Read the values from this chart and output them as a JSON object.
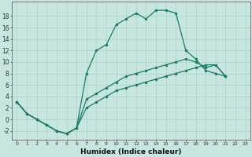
{
  "xlabel": "Humidex (Indice chaleur)",
  "bg_color": "#c8e6e0",
  "grid_color": "#b0d4cc",
  "line_color": "#1a7a6a",
  "xlim": [
    -0.5,
    23.5
  ],
  "ylim": [
    -3.5,
    20.5
  ],
  "yticks": [
    -2,
    0,
    2,
    4,
    6,
    8,
    10,
    12,
    14,
    16,
    18
  ],
  "xticks": [
    0,
    1,
    2,
    3,
    4,
    5,
    6,
    7,
    8,
    9,
    10,
    11,
    12,
    13,
    14,
    15,
    16,
    17,
    18,
    19,
    20,
    21,
    22,
    23
  ],
  "line1_x": [
    0,
    1,
    2,
    3,
    4,
    5,
    6,
    7,
    8,
    9,
    10,
    11,
    12,
    13,
    14,
    15,
    16,
    17,
    18,
    19,
    20,
    21
  ],
  "line1_y": [
    3,
    1,
    0,
    -1,
    -2,
    -2.5,
    -1.5,
    8,
    12,
    13,
    16.5,
    17.5,
    18.5,
    17.5,
    19,
    19,
    18.5,
    12,
    10.5,
    8.5,
    8,
    7.5
  ],
  "line2_x": [
    0,
    1,
    2,
    3,
    4,
    5,
    6,
    7,
    8,
    9,
    10,
    11,
    12,
    13,
    14,
    15,
    16,
    17,
    18,
    19,
    20,
    21
  ],
  "line2_y": [
    3,
    1,
    0,
    -1,
    -2,
    -2.5,
    -1.5,
    3.5,
    4.5,
    5.5,
    6.5,
    7.5,
    8,
    8.5,
    9,
    9.5,
    10,
    10.5,
    10,
    9,
    9.5,
    7.5
  ],
  "line3_x": [
    0,
    1,
    2,
    3,
    4,
    5,
    6,
    7,
    8,
    9,
    10,
    11,
    12,
    13,
    14,
    15,
    16,
    17,
    18,
    19,
    20,
    21
  ],
  "line3_y": [
    3,
    1,
    0,
    -1,
    -2,
    -2.5,
    -1.5,
    2,
    3,
    4,
    5,
    5.5,
    6,
    6.5,
    7,
    7.5,
    8,
    8.5,
    9,
    9.5,
    9.5,
    7.5
  ]
}
